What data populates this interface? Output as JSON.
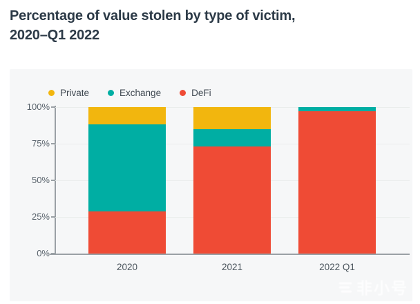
{
  "page": {
    "title_line1": "Percentage of value stolen by type of victim,",
    "title_line2": "2020–Q1 2022"
  },
  "chart_data": {
    "type": "bar",
    "stacked": true,
    "normalized": "percent",
    "title": "Percentage of value stolen by type of victim, 2020–Q1 2022",
    "categories": [
      "2020",
      "2021",
      "2022 Q1"
    ],
    "series": [
      {
        "name": "Private",
        "color": "#F2B60E",
        "values": [
          12,
          15,
          0
        ]
      },
      {
        "name": "Exchange",
        "color": "#00AEA3",
        "values": [
          59,
          12,
          3
        ]
      },
      {
        "name": "DeFi",
        "color": "#EF4B35",
        "values": [
          29,
          73,
          97
        ]
      }
    ],
    "xlabel": "",
    "ylabel": "",
    "ylim": [
      0,
      100
    ],
    "y_ticks": [
      "0%",
      "25%",
      "50%",
      "75%",
      "100%"
    ],
    "grid": true,
    "legend_position": "top-left",
    "panel_background": "#F6F7F8",
    "axis_color": "#9AA0A5",
    "title_color": "#2C3A47"
  },
  "watermark": {
    "text": "非小号",
    "logo": "feixiaohao-logo"
  }
}
